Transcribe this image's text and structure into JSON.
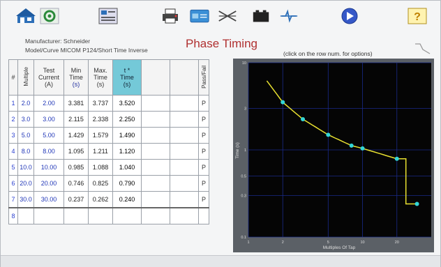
{
  "toolbar": {
    "items": [
      {
        "name": "home-icon"
      },
      {
        "name": "settings-gear-icon"
      },
      {
        "name": "test-plan-icon"
      },
      {
        "name": "print-icon"
      },
      {
        "name": "card-icon"
      },
      {
        "name": "crossed-lines-icon"
      },
      {
        "name": "battery-icon"
      },
      {
        "name": "waveform-icon"
      },
      {
        "name": "run-play-icon"
      },
      {
        "name": "help-icon"
      }
    ],
    "help_label": "?"
  },
  "info": {
    "manufacturer_label": "Manufacturer:",
    "manufacturer": "Schneider",
    "model_label": "Model/Curve",
    "model": "MICOM P124/Short Time Inverse"
  },
  "page_title": "Phase Timing",
  "hint": "(click on the row num. for options)",
  "table": {
    "headers": {
      "num": "#",
      "multiple": "Multiple",
      "test_current": [
        "Test",
        "Current",
        "(A)"
      ],
      "min_time": [
        "Min",
        "Time",
        "(s)"
      ],
      "max_time": [
        "Max.",
        "Time",
        "(s)"
      ],
      "time": [
        "t *",
        "Time",
        "(s)"
      ],
      "pass_fail": "Pass/Fail"
    },
    "rows": [
      {
        "n": "1",
        "mult": "2.0",
        "cur": "2.00",
        "min": "3.381",
        "max": "3.737",
        "t": "3.520",
        "pf": "P"
      },
      {
        "n": "2",
        "mult": "3.0",
        "cur": "3.00",
        "min": "2.115",
        "max": "2.338",
        "t": "2.250",
        "pf": "P"
      },
      {
        "n": "3",
        "mult": "5.0",
        "cur": "5.00",
        "min": "1.429",
        "max": "1.579",
        "t": "1.490",
        "pf": "P"
      },
      {
        "n": "4",
        "mult": "8.0",
        "cur": "8.00",
        "min": "1.095",
        "max": "1.211",
        "t": "1.120",
        "pf": "P"
      },
      {
        "n": "5",
        "mult": "10.0",
        "cur": "10.00",
        "min": "0.985",
        "max": "1.088",
        "t": "1.040",
        "pf": "P"
      },
      {
        "n": "6",
        "mult": "20.0",
        "cur": "20.00",
        "min": "0.746",
        "max": "0.825",
        "t": "0.790",
        "pf": "P"
      },
      {
        "n": "7",
        "mult": "30.0",
        "cur": "30.00",
        "min": "0.237",
        "max": "0.262",
        "t": "0.240",
        "pf": "P"
      },
      {
        "n": "8",
        "mult": "",
        "cur": "",
        "min": "",
        "max": "",
        "t": "",
        "pf": ""
      }
    ]
  },
  "chart": {
    "ylabel": "Time (s)",
    "xlabel": "Multiples Of Tap",
    "y_ticks": [
      "10",
      "3",
      "1",
      "0.5",
      "0.3",
      "0.1"
    ],
    "x_ticks": [
      "1",
      "2",
      "5",
      "10",
      "20"
    ]
  },
  "colors": {
    "curve": "#e8e030",
    "points": "#33d6d6",
    "plot_bg": "#050505",
    "grid": "#1a2a8a",
    "highlight_header": "#74c9d8",
    "title": "#b03030"
  },
  "chart_data": {
    "type": "line",
    "xscale": "log",
    "yscale": "log",
    "xlim": [
      1,
      40
    ],
    "ylim": [
      0.1,
      10
    ],
    "series": [
      {
        "x": [
          2,
          3,
          5,
          8,
          10,
          20,
          30
        ],
        "y": [
          3.52,
          2.25,
          1.49,
          1.12,
          1.04,
          0.79,
          0.24
        ]
      }
    ]
  }
}
